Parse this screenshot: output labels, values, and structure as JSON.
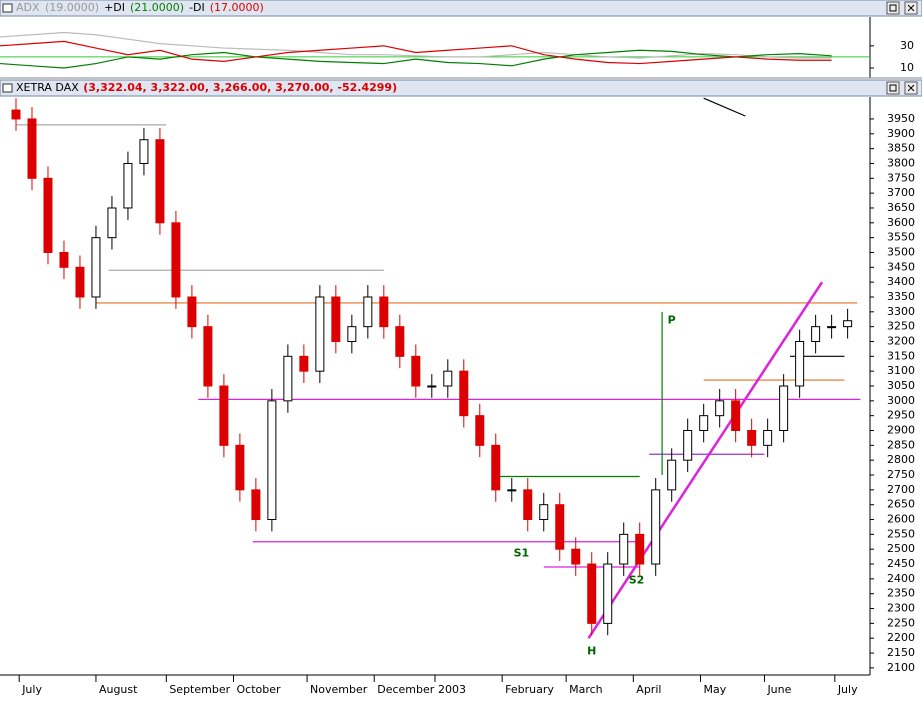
{
  "header_adx": {
    "title": "ADX",
    "items": [
      "(19.0000)",
      "+DI",
      "(21.0000)",
      "-DI",
      "(17.0000)"
    ]
  },
  "header_main": {
    "title": "XETRA DAX",
    "quote": "(3,322.04, 3,322.00, 3,266.00, 3,270.00, -52.4299)"
  },
  "chart_data": [
    {
      "type": "line",
      "xlim": [
        0,
        272
      ],
      "ylim": [
        1,
        56
      ],
      "yticks": [
        10,
        30
      ],
      "ref_line": 20,
      "ref_color": "#33cc33",
      "x": [
        0,
        10,
        20,
        30,
        40,
        50,
        60,
        70,
        80,
        90,
        100,
        110,
        120,
        130,
        140,
        150,
        160,
        170,
        180,
        190,
        200,
        210,
        220,
        230,
        240,
        250,
        260
      ],
      "series": [
        {
          "name": "ADX",
          "color": "#bbbbbb",
          "values": [
            38,
            40,
            42,
            40,
            36,
            32,
            30,
            28,
            27,
            26,
            24,
            22,
            22,
            21,
            20,
            20,
            22,
            24,
            22,
            20,
            19,
            21,
            23,
            22,
            20,
            19,
            19
          ]
        },
        {
          "name": "+DI",
          "color": "#008000",
          "values": [
            14,
            12,
            10,
            14,
            20,
            18,
            22,
            24,
            20,
            18,
            16,
            15,
            14,
            18,
            15,
            14,
            12,
            18,
            22,
            24,
            26,
            25,
            22,
            20,
            22,
            23,
            21
          ]
        },
        {
          "name": "-DI",
          "color": "#dd0000",
          "values": [
            30,
            32,
            34,
            28,
            22,
            26,
            18,
            16,
            20,
            24,
            26,
            28,
            30,
            24,
            26,
            28,
            30,
            22,
            18,
            15,
            14,
            16,
            18,
            20,
            18,
            17,
            17
          ]
        }
      ]
    },
    {
      "type": "candlestick",
      "xlim": [
        0,
        272
      ],
      "ylim": [
        2076,
        4024
      ],
      "yticks": [
        2100,
        2150,
        2200,
        2250,
        2300,
        2350,
        2400,
        2450,
        2500,
        2550,
        2600,
        2650,
        2700,
        2750,
        2800,
        2850,
        2900,
        2950,
        3000,
        3050,
        3100,
        3150,
        3200,
        3250,
        3300,
        3350,
        3400,
        3450,
        3500,
        3550,
        3600,
        3650,
        3700,
        3750,
        3800,
        3850,
        3900,
        3950
      ],
      "xticks": [
        {
          "value": 6,
          "label": "July"
        },
        {
          "value": 30,
          "label": "August"
        },
        {
          "value": 52,
          "label": "September"
        },
        {
          "value": 73,
          "label": "October"
        },
        {
          "value": 96,
          "label": "November"
        },
        {
          "value": 117,
          "label": "December"
        },
        {
          "value": 136,
          "label": "2003"
        },
        {
          "value": 157,
          "label": "February"
        },
        {
          "value": 177,
          "label": "March"
        },
        {
          "value": 198,
          "label": "April"
        },
        {
          "value": 219,
          "label": "May"
        },
        {
          "value": 239,
          "label": "June"
        },
        {
          "value": 261,
          "label": "July"
        }
      ],
      "x": [
        5,
        10,
        15,
        20,
        25,
        30,
        35,
        40,
        45,
        50,
        55,
        60,
        65,
        70,
        75,
        80,
        85,
        90,
        95,
        100,
        105,
        110,
        115,
        120,
        125,
        130,
        135,
        140,
        145,
        150,
        155,
        160,
        165,
        170,
        175,
        180,
        185,
        190,
        195,
        200,
        205,
        210,
        215,
        220,
        225,
        230,
        235,
        240,
        245,
        250,
        255,
        260,
        265
      ],
      "open": [
        3980,
        3950,
        3750,
        3500,
        3450,
        3350,
        3550,
        3650,
        3800,
        3880,
        3600,
        3350,
        3250,
        3050,
        2850,
        2700,
        2600,
        3000,
        3150,
        3100,
        3350,
        3200,
        3250,
        3350,
        3250,
        3150,
        3050,
        3050,
        3100,
        2950,
        2850,
        2700,
        2700,
        2600,
        2650,
        2500,
        2450,
        2250,
        2450,
        2550,
        2450,
        2700,
        2800,
        2900,
        2950,
        3000,
        2900,
        2850,
        2900,
        3050,
        3200,
        3250,
        3250
      ],
      "close": [
        3950,
        3750,
        3500,
        3450,
        3350,
        3550,
        3650,
        3800,
        3880,
        3600,
        3350,
        3250,
        3050,
        2850,
        2700,
        2600,
        3000,
        3150,
        3100,
        3350,
        3200,
        3250,
        3350,
        3250,
        3150,
        3050,
        3050,
        3100,
        2950,
        2850,
        2700,
        2700,
        2600,
        2650,
        2500,
        2450,
        2250,
        2450,
        2550,
        2450,
        2700,
        2800,
        2900,
        2950,
        3000,
        2900,
        2850,
        2900,
        3050,
        3200,
        3250,
        3250,
        3270
      ],
      "high": [
        4020,
        3990,
        3790,
        3540,
        3490,
        3590,
        3690,
        3840,
        3920,
        3920,
        3640,
        3390,
        3290,
        3090,
        2890,
        2740,
        3040,
        3190,
        3190,
        3390,
        3390,
        3290,
        3390,
        3390,
        3290,
        3190,
        3090,
        3140,
        3140,
        2990,
        2890,
        2740,
        2740,
        2690,
        2690,
        2540,
        2490,
        2490,
        2590,
        2590,
        2740,
        2840,
        2940,
        2990,
        3040,
        3040,
        2940,
        2940,
        3090,
        3240,
        3290,
        3290,
        3310
      ],
      "low": [
        3910,
        3710,
        3460,
        3410,
        3310,
        3310,
        3510,
        3610,
        3760,
        3560,
        3310,
        3210,
        3010,
        2810,
        2660,
        2560,
        2560,
        2960,
        3060,
        3060,
        3160,
        3160,
        3210,
        3210,
        3110,
        3010,
        3010,
        3010,
        2910,
        2810,
        2660,
        2660,
        2560,
        2560,
        2460,
        2410,
        2210,
        2210,
        2410,
        2410,
        2410,
        2660,
        2760,
        2860,
        2910,
        2860,
        2810,
        2810,
        2860,
        3010,
        3160,
        3210,
        3210
      ],
      "lines": [
        {
          "x": [
            5,
            52
          ],
          "y": [
            3930,
            3930
          ],
          "color": "#aaaaaa"
        },
        {
          "x": [
            34,
            120
          ],
          "y": [
            3440,
            3440
          ],
          "color": "#aaaaaa"
        },
        {
          "x": [
            30,
            268
          ],
          "y": [
            3330,
            3330
          ],
          "color": "#e07020"
        },
        {
          "x": [
            62,
            269
          ],
          "y": [
            3005,
            3005
          ],
          "color": "#dd22dd"
        },
        {
          "x": [
            79,
            200
          ],
          "y": [
            2525,
            2525
          ],
          "color": "#dd22dd"
        },
        {
          "x": [
            155,
            200
          ],
          "y": [
            2745,
            2745
          ],
          "color": "#008000"
        },
        {
          "x": [
            170,
            200
          ],
          "y": [
            2440,
            2440
          ],
          "color": "#dd22dd"
        },
        {
          "x": [
            220,
            264
          ],
          "y": [
            3070,
            3070
          ],
          "color": "#e07020"
        },
        {
          "x": [
            247,
            264
          ],
          "y": [
            3150,
            3150
          ],
          "color": "#000000"
        },
        {
          "x": [
            203,
            239
          ],
          "y": [
            2820,
            2820
          ],
          "color": "#9933cc"
        },
        {
          "x": [
            184,
            257
          ],
          "y": [
            2200,
            3400
          ],
          "color": "#dd22dd"
        },
        {
          "x": [
            207,
            207
          ],
          "y": [
            2750,
            3300
          ],
          "color": "#008000"
        },
        {
          "x": [
            220,
            233
          ],
          "y": [
            4020,
            3960
          ],
          "color": "#000000"
        }
      ],
      "annotations": [
        {
          "text": "S1",
          "x": 163,
          "y": 2485,
          "color": "#006400"
        },
        {
          "text": "S2",
          "x": 199,
          "y": 2395,
          "color": "#006400"
        },
        {
          "text": "H",
          "x": 185,
          "y": 2155,
          "color": "#006400"
        },
        {
          "text": "P",
          "x": 210,
          "y": 3270,
          "color": "#006400"
        }
      ]
    }
  ]
}
